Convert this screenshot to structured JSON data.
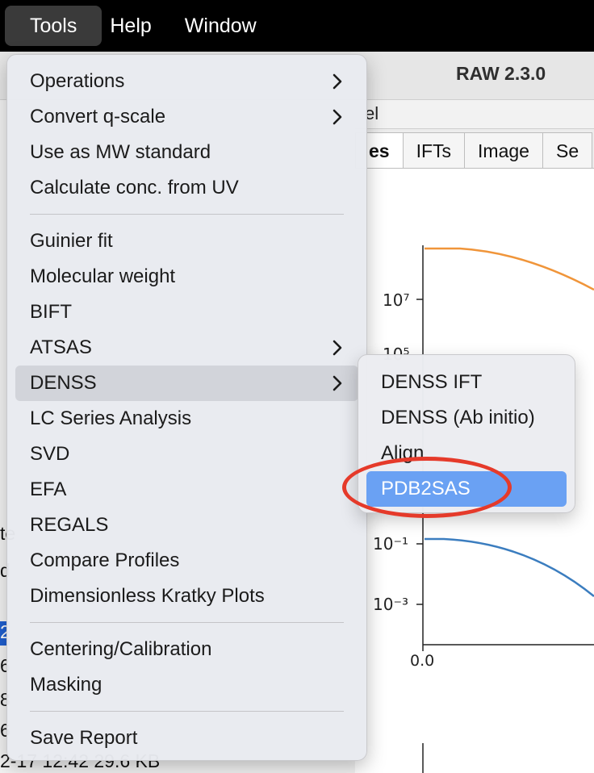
{
  "menubar": {
    "items": [
      "Tools",
      "Help",
      "Window"
    ]
  },
  "window": {
    "title": "RAW 2.3.0",
    "panel_label": "el",
    "tabs": [
      "es",
      "IFTs",
      "Image",
      "Se"
    ]
  },
  "plot": {
    "y_ticks": [
      "10⁷",
      "10⁵",
      "10⁻¹",
      "10⁻³"
    ],
    "x_ticks": [
      "0.0"
    ],
    "series_colors": [
      "#f0953a",
      "#3b7dbf"
    ]
  },
  "file_list": {
    "rows": [
      "te",
      "d",
      "2",
      "6",
      "8",
      "6",
      "2-17 12:42        29.6 KB"
    ]
  },
  "tools_menu": {
    "group1": [
      {
        "label": "Operations",
        "submenu": true
      },
      {
        "label": "Convert q-scale",
        "submenu": true
      },
      {
        "label": "Use as MW standard",
        "submenu": false
      },
      {
        "label": "Calculate conc. from UV",
        "submenu": false
      }
    ],
    "group2": [
      {
        "label": "Guinier fit",
        "submenu": false
      },
      {
        "label": "Molecular weight",
        "submenu": false
      },
      {
        "label": "BIFT",
        "submenu": false
      },
      {
        "label": "ATSAS",
        "submenu": true
      },
      {
        "label": "DENSS",
        "submenu": true
      },
      {
        "label": "LC Series Analysis",
        "submenu": false
      },
      {
        "label": "SVD",
        "submenu": false
      },
      {
        "label": "EFA",
        "submenu": false
      },
      {
        "label": "REGALS",
        "submenu": false
      },
      {
        "label": "Compare Profiles",
        "submenu": false
      },
      {
        "label": "Dimensionless Kratky Plots",
        "submenu": false
      }
    ],
    "group3": [
      {
        "label": "Centering/Calibration",
        "submenu": false
      },
      {
        "label": "Masking",
        "submenu": false
      }
    ],
    "group4": [
      {
        "label": "Save Report",
        "submenu": false
      }
    ]
  },
  "denss_submenu": {
    "items": [
      "DENSS IFT",
      "DENSS (Ab initio)",
      "Align",
      "PDB2SAS"
    ],
    "selected": "PDB2SAS"
  },
  "annotation_color": "#e53a2a"
}
